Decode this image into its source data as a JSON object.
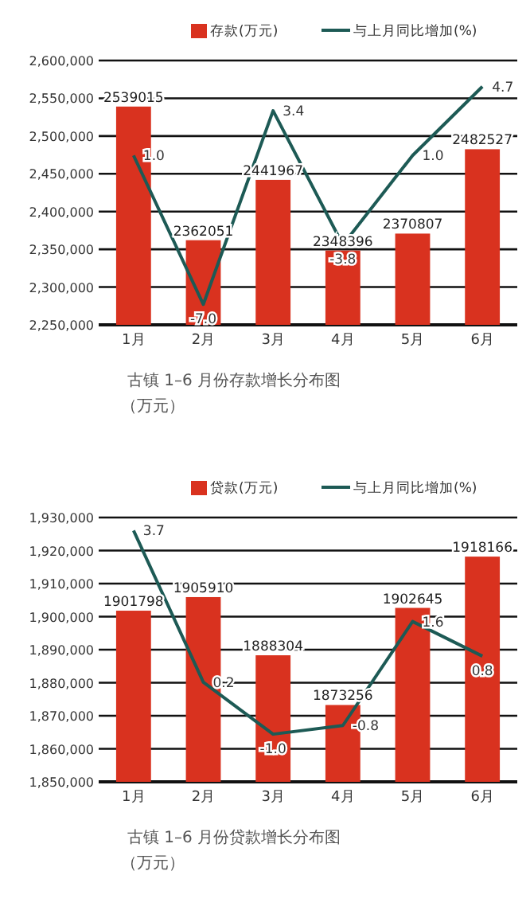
{
  "chart_data": [
    {
      "type": "bar",
      "title": "古镇 1–6 月份存款增长分布图",
      "subtitle": "（万元）",
      "categories": [
        "1月",
        "2月",
        "3月",
        "4月",
        "5月",
        "6月"
      ],
      "series": [
        {
          "name": "存款(万元)",
          "color": "#d9321f",
          "values": [
            2539015,
            2362051,
            2441967,
            2348396,
            2370807,
            2482527
          ],
          "value_labels": [
            "2539015",
            "2362051",
            "2441967",
            "2348396",
            "2370807",
            "2482527"
          ]
        },
        {
          "name": "与上月同比增加(%)",
          "type": "line",
          "axis": "y2",
          "color": "#1d5a55",
          "values": [
            1.0,
            -7.0,
            3.4,
            -3.8,
            1.0,
            4.7
          ],
          "value_labels": [
            "1.0",
            "-7.0",
            "3.4",
            "-3.8",
            "1.0",
            "4.7"
          ]
        }
      ],
      "ylim": [
        2250000,
        2600000
      ],
      "yticks": [
        {
          "value": 2250000,
          "label": "2,250,000"
        },
        {
          "value": 2300000,
          "label": "2,300,000"
        },
        {
          "value": 2350000,
          "label": "2,350,000"
        },
        {
          "value": 2400000,
          "label": "2,400,000"
        },
        {
          "value": 2450000,
          "label": "2,450,000"
        },
        {
          "value": 2500000,
          "label": "2,500,000"
        },
        {
          "value": 2550000,
          "label": "2,550,000"
        },
        {
          "value": 2600000,
          "label": "2,600,000"
        }
      ],
      "y2lim": [
        -8.1,
        6.1
      ],
      "grid": "y",
      "legend": "top"
    },
    {
      "type": "bar",
      "title": "古镇 1–6 月份贷款增长分布图",
      "subtitle": "（万元）",
      "categories": [
        "1月",
        "2月",
        "3月",
        "4月",
        "5月",
        "6月"
      ],
      "series": [
        {
          "name": "贷款(万元)",
          "color": "#d9321f",
          "values": [
            1901798,
            1905910,
            1888304,
            1873256,
            1902645,
            1918166
          ],
          "value_labels": [
            "1901798",
            "1905910",
            "1888304",
            "1873256",
            "1902645",
            "1918166"
          ]
        },
        {
          "name": "与上月同比增加(%)",
          "type": "line",
          "axis": "y2",
          "color": "#1d5a55",
          "values": [
            3.7,
            0.2,
            -1.0,
            -0.8,
            1.6,
            0.8
          ],
          "value_labels": [
            "3.7",
            "0.2",
            "-1.0",
            "-0.8",
            "1.6",
            "0.8"
          ]
        }
      ],
      "ylim": [
        1850000,
        1930000
      ],
      "yticks": [
        {
          "value": 1850000,
          "label": "1,850,000"
        },
        {
          "value": 1860000,
          "label": "1,860,000"
        },
        {
          "value": 1870000,
          "label": "1,870,000"
        },
        {
          "value": 1880000,
          "label": "1,880,000"
        },
        {
          "value": 1890000,
          "label": "1,890,000"
        },
        {
          "value": 1900000,
          "label": "1,900,000"
        },
        {
          "value": 1910000,
          "label": "1,910,000"
        },
        {
          "value": 1920000,
          "label": "1,920,000"
        },
        {
          "value": 1930000,
          "label": "1,930,000"
        }
      ],
      "y2lim": [
        -2.1,
        4.0
      ],
      "grid": "y",
      "legend": "top"
    }
  ]
}
